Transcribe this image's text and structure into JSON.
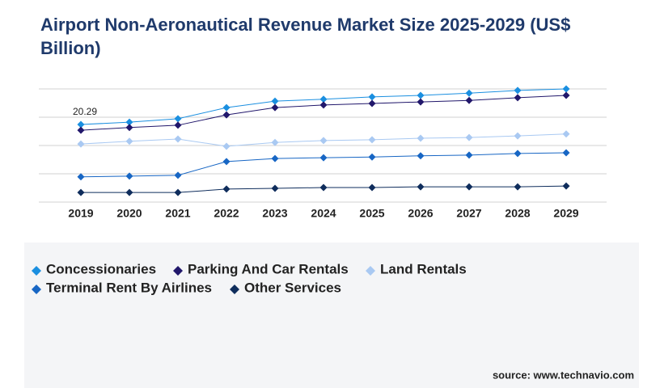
{
  "chart_data": {
    "type": "line",
    "title": "Airport Non-Aeronautical Revenue Market Size 2025-2029 (US$ Billion)",
    "categories": [
      "2019",
      "2020",
      "2021",
      "2022",
      "2023",
      "2024",
      "2025",
      "2026",
      "2027",
      "2028",
      "2029"
    ],
    "series": [
      {
        "name": "Concessionaries",
        "color": "#1a8fe0",
        "values": [
          20.29,
          20.9,
          21.8,
          24.7,
          26.4,
          26.9,
          27.5,
          27.9,
          28.5,
          29.2,
          29.6
        ]
      },
      {
        "name": "Parking And Car Rentals",
        "color": "#21176b",
        "values": [
          18.8,
          19.5,
          20.1,
          22.8,
          24.7,
          25.4,
          25.8,
          26.2,
          26.6,
          27.3,
          27.9
        ]
      },
      {
        "name": "Land Rentals",
        "color": "#a9c9f2",
        "values": [
          15.2,
          15.9,
          16.5,
          14.6,
          15.6,
          16.1,
          16.3,
          16.7,
          16.9,
          17.3,
          17.8
        ]
      },
      {
        "name": "Terminal Rent By Airlines",
        "color": "#1766c4",
        "values": [
          6.6,
          6.8,
          7.0,
          10.6,
          11.4,
          11.6,
          11.8,
          12.1,
          12.3,
          12.7,
          12.9
        ]
      },
      {
        "name": "Other Services",
        "color": "#0f2d5c",
        "values": [
          2.5,
          2.5,
          2.5,
          3.4,
          3.6,
          3.8,
          3.8,
          4.0,
          4.0,
          4.0,
          4.2
        ]
      }
    ],
    "ylim": [
      0,
      29.6
    ],
    "yticks": [
      0,
      7.4,
      14.8,
      22.2,
      29.6
    ],
    "grid": true,
    "source": "source: www.technavio.com"
  }
}
